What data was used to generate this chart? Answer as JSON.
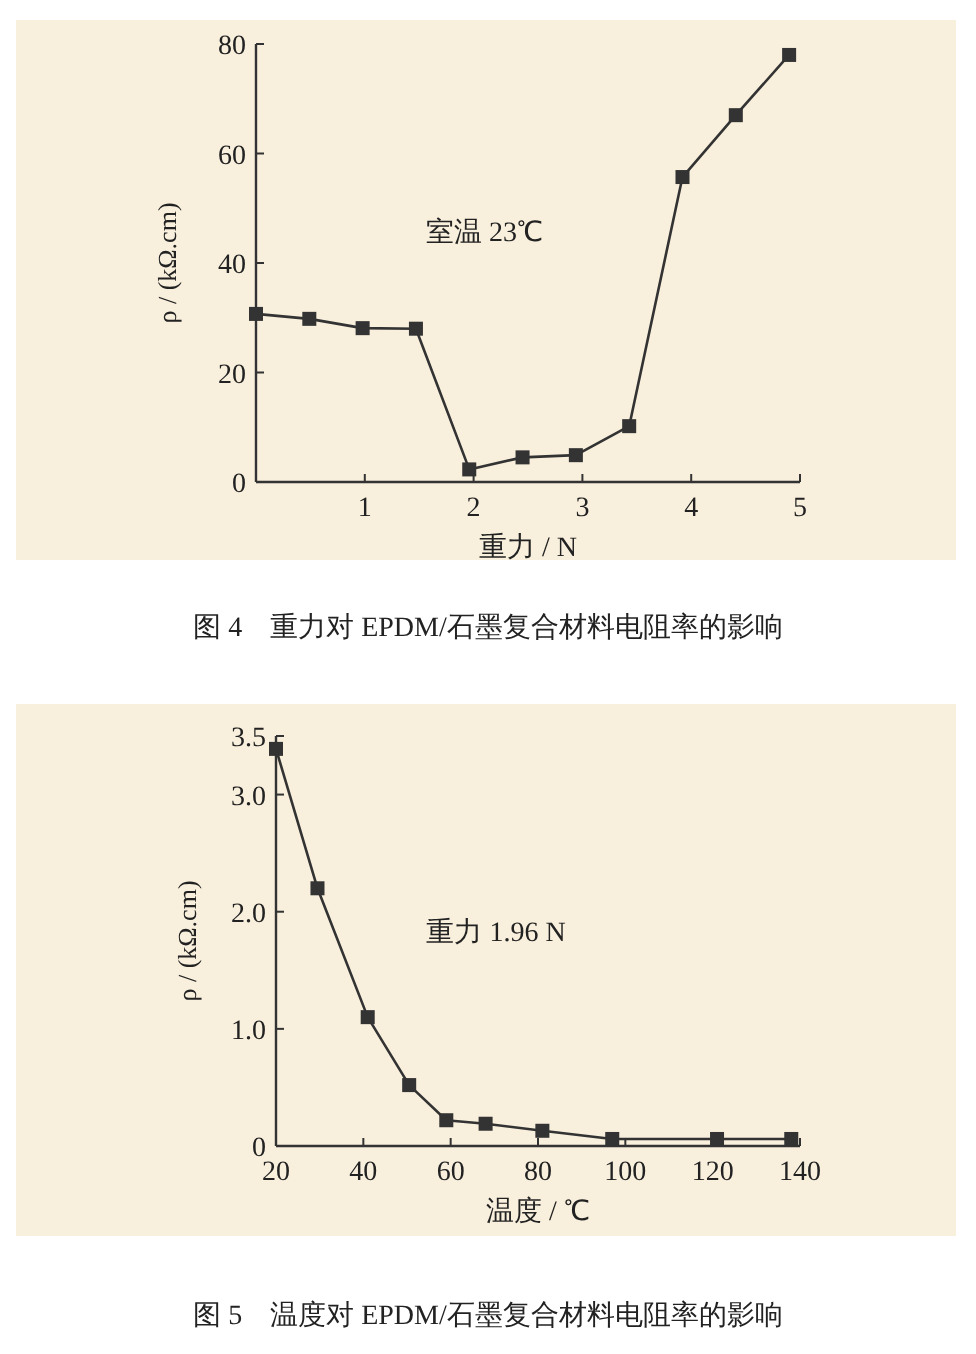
{
  "chart_data": [
    {
      "type": "line",
      "title": "图 4　重力对 EPDM/石墨复合材料电阻率的影响",
      "xlabel": "重力 / N",
      "ylabel": "ρ / (kΩ.cm)",
      "annotations": [
        "室温 23℃"
      ],
      "x": [
        0,
        0.49,
        0.98,
        1.47,
        1.96,
        2.45,
        2.94,
        3.43,
        3.92,
        4.41,
        4.9
      ],
      "series": [
        {
          "color": "#333333",
          "values": [
            30.7,
            29.8,
            28.1,
            28.0,
            2.3,
            4.5,
            4.9,
            10.2,
            55.7,
            67.0,
            78.0
          ]
        }
      ],
      "xlim": [
        0,
        5
      ],
      "xticks": [
        1,
        2,
        3,
        4,
        5
      ],
      "ylim": [
        0,
        80
      ],
      "yticks": [
        0,
        20,
        40,
        60,
        80
      ],
      "marker": "square",
      "line_style": "solid"
    },
    {
      "type": "line",
      "title": "图 5　温度对 EPDM/石墨复合材料电阻率的影响",
      "xlabel": "温度 / ℃",
      "ylabel": "ρ / (kΩ.cm)",
      "annotations": [
        "重力 1.96 N"
      ],
      "x": [
        20,
        29.5,
        41,
        50.5,
        59,
        68,
        81,
        97,
        121,
        138
      ],
      "series": [
        {
          "color": "#333333",
          "values": [
            3.39,
            2.2,
            1.1,
            0.52,
            0.22,
            0.19,
            0.13,
            0.06,
            0.06,
            0.06
          ]
        }
      ],
      "xlim": [
        20,
        140
      ],
      "xticks": [
        20,
        40,
        60,
        80,
        100,
        120,
        140
      ],
      "ylim": [
        0,
        3.5
      ],
      "yticks": [
        0,
        {
          "value": 1,
          "label": "1.0"
        },
        {
          "value": 2,
          "label": "2.0"
        },
        {
          "value": 3,
          "label": "3.0"
        },
        {
          "value": 3.5,
          "label": "3.5"
        }
      ],
      "marker": "square",
      "line_style": "solid"
    }
  ]
}
